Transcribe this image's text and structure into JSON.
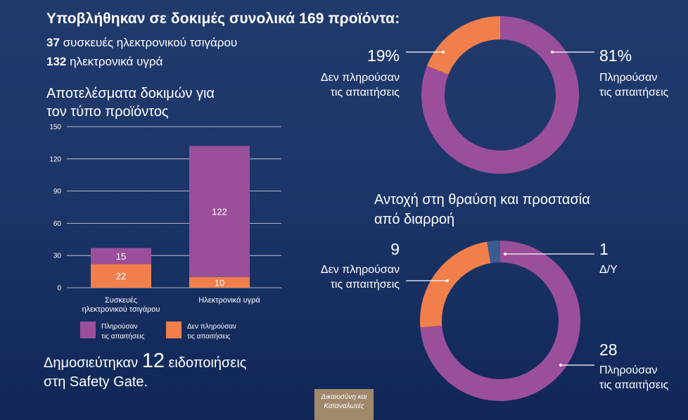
{
  "headline": {
    "text": "Υποβλήθηκαν σε δοκιμές συνολικά 169 προϊόντα:"
  },
  "counts": [
    {
      "number": "37",
      "label": "συσκευές ηλεκτρονικού τσιγάρου"
    },
    {
      "number": "132",
      "label": "ηλεκτρονικά υγρά"
    }
  ],
  "published": {
    "prefix": "Δημοσιεύτηκαν",
    "number": "12",
    "suffix": "ειδοποιήσεις",
    "line2": "στη Safety Gate."
  },
  "badge": {
    "line1": "Δικαιοσύνη και",
    "line2": "Καταναλωτές"
  },
  "colors": {
    "purple": "#9b4f9a",
    "orange": "#f07f4b",
    "na_blue": "#3a5c91",
    "background": "#1c3669"
  },
  "chart_data": [
    {
      "type": "bar",
      "stacked": true,
      "title_line1": "Αποτελέσματα δοκιμών για",
      "title_line2": "τον τύπο προϊόντος",
      "categories": [
        [
          "Συσκευές",
          "ηλεκτρονικού τσιγάρου"
        ],
        [
          "Ηλεκτρονικά υγρά"
        ]
      ],
      "series": [
        {
          "name": "Δεν πληρούσαν τις απαιτήσεις",
          "legend": [
            "Δεν πληρούσαν",
            "τις απαιτήσεις"
          ],
          "color": "#f07f4b",
          "values": [
            22,
            10
          ]
        },
        {
          "name": "Πληρούσαν τις απαιτήσεις",
          "legend": [
            "Πληρούσαν",
            "τις απαιτήσεις"
          ],
          "color": "#9b4f9a",
          "values": [
            15,
            122
          ]
        }
      ],
      "yticks": [
        0,
        30,
        60,
        90,
        120,
        150
      ],
      "ylim": [
        0,
        150
      ],
      "grid": true
    },
    {
      "type": "pie",
      "donut": true,
      "title": "",
      "slices": [
        {
          "label": "81%",
          "desc": [
            "Πληρούσαν",
            "τις απαιτήσεις"
          ],
          "value": 81,
          "color": "#9b4f9a"
        },
        {
          "label": "19%",
          "desc": [
            "Δεν πληρούσαν",
            "τις απαιτήσεις"
          ],
          "value": 19,
          "color": "#f07f4b"
        }
      ]
    },
    {
      "type": "pie",
      "donut": true,
      "title_line1": "Αντοχή στη θραύση και προστασία",
      "title_line2": "από διαρροή",
      "slices": [
        {
          "label": "28",
          "desc": [
            "Πληρούσαν",
            "τις απαιτήσεις"
          ],
          "value": 28,
          "color": "#9b4f9a"
        },
        {
          "label": "9",
          "desc": [
            "Δεν πληρούσαν",
            "τις απαιτήσεις"
          ],
          "value": 9,
          "color": "#f07f4b"
        },
        {
          "label": "1",
          "desc": [
            "Δ/Υ"
          ],
          "value": 1,
          "color": "#3a5c91"
        }
      ]
    }
  ]
}
